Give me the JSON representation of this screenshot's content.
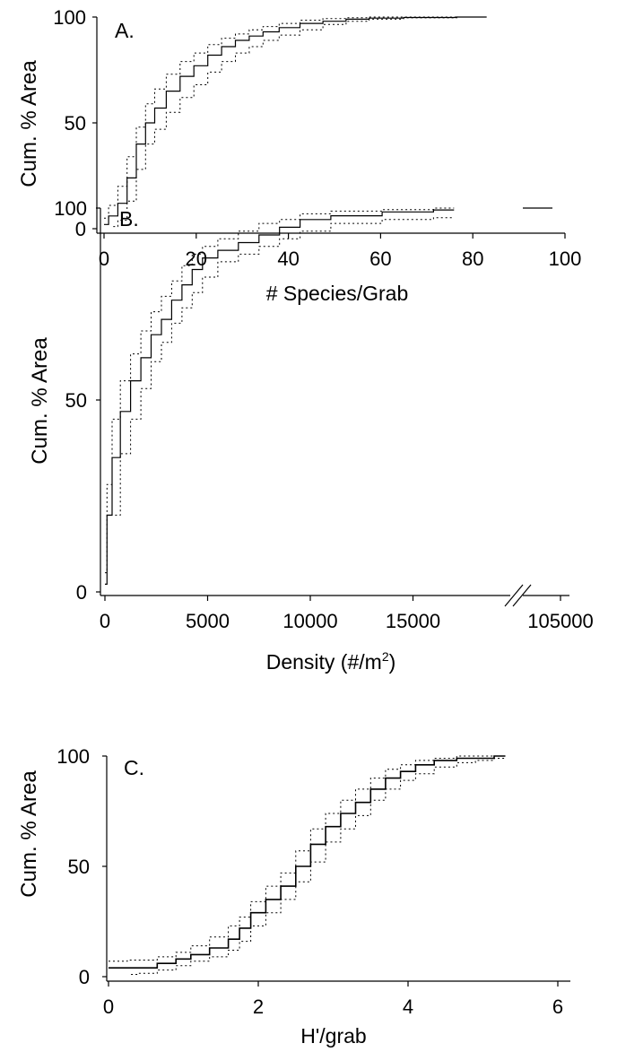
{
  "colors": {
    "line": "#000000",
    "background": "#ffffff"
  },
  "chart_data": [
    {
      "type": "line",
      "panel_label": "A.",
      "xlabel": "# Species/Grab",
      "ylabel": "Cum. % Area",
      "xlim": [
        0,
        100
      ],
      "ylim": [
        0,
        100
      ],
      "x_ticks": [
        0,
        20,
        40,
        60,
        80,
        100
      ],
      "y_ticks": [
        0,
        50,
        100
      ],
      "series": [
        {
          "style": "solid",
          "x": [
            0,
            2,
            4,
            6,
            8,
            10,
            12,
            15,
            18,
            21,
            24,
            27,
            30,
            33,
            36,
            40,
            45,
            50,
            55,
            60,
            70,
            83
          ],
          "y": [
            2,
            6,
            12,
            24,
            40,
            50,
            57,
            65,
            72,
            77,
            82,
            86,
            89,
            91,
            93,
            95,
            97,
            98,
            99,
            99.5,
            99.8,
            100
          ]
        },
        {
          "style": "dotted",
          "x": [
            0,
            2,
            4,
            6,
            8,
            10,
            12,
            15,
            18,
            21,
            24,
            27,
            30,
            33,
            36,
            40,
            45,
            50,
            55,
            60,
            70,
            83
          ],
          "y": [
            5,
            11,
            20,
            34,
            48,
            59,
            66,
            73,
            79,
            83,
            87,
            90,
            92,
            94,
            95.5,
            97,
            98.5,
            99.3,
            99.7,
            100,
            100,
            100
          ]
        },
        {
          "style": "dotted",
          "x": [
            2,
            4,
            6,
            8,
            10,
            12,
            15,
            18,
            21,
            24,
            27,
            30,
            33,
            36,
            40,
            45,
            50,
            55,
            60,
            70,
            83
          ],
          "y": [
            1,
            4,
            13,
            28,
            40,
            47,
            55,
            62,
            68,
            74,
            79,
            83,
            86,
            89,
            91.5,
            94,
            96.5,
            98,
            99,
            99.6,
            100
          ]
        }
      ]
    },
    {
      "type": "line",
      "panel_label": "B.",
      "xlabel": "Density (#/m",
      "xlabel_sup": "2",
      "xlabel_end": ")",
      "ylabel": "Cum. % Area",
      "xlim": [
        0,
        20000
      ],
      "ylim": [
        0,
        100
      ],
      "x_ticks": [
        0,
        5000,
        10000,
        15000
      ],
      "x_tick_labels": [
        "0",
        "5000",
        "10000",
        "15000"
      ],
      "break_tick_label": "105000",
      "y_ticks": [
        0,
        50,
        100
      ],
      "series": [
        {
          "style": "solid",
          "x": [
            0,
            200,
            500,
            1000,
            1500,
            2000,
            2500,
            3000,
            3500,
            4000,
            4500,
            5000,
            6000,
            7000,
            8000,
            9000,
            10000,
            12000,
            15000,
            17000
          ],
          "y": [
            2,
            20,
            35,
            47,
            55,
            61,
            67,
            71,
            76,
            80,
            84,
            87,
            89,
            91,
            93,
            95,
            97,
            98,
            99,
            99.5
          ]
        },
        {
          "style": "dotted",
          "x": [
            0,
            200,
            500,
            1000,
            1500,
            2000,
            2500,
            3000,
            3500,
            4000,
            4500,
            5000,
            6000,
            7000,
            8000,
            9000,
            10000,
            12000,
            15000,
            17000
          ],
          "y": [
            5,
            28,
            45,
            55,
            62,
            68,
            73,
            77,
            81,
            85,
            88,
            90,
            92,
            94,
            96,
            97,
            98.5,
            99.2,
            99.6,
            100
          ]
        },
        {
          "style": "dotted",
          "x": [
            500,
            1000,
            1500,
            2000,
            2500,
            3000,
            3500,
            4000,
            4500,
            5000,
            6000,
            7000,
            8000,
            9000,
            10000,
            12000,
            15000,
            17000
          ],
          "y": [
            20,
            36,
            45,
            53,
            60,
            65,
            70,
            74,
            78,
            82,
            86,
            88,
            90,
            92,
            94,
            96,
            97,
            97.5
          ]
        }
      ],
      "after_break_value": 100
    },
    {
      "type": "line",
      "panel_label": "C.",
      "xlabel": "H'/grab",
      "ylabel": "Cum. % Area",
      "xlim": [
        0,
        6
      ],
      "ylim": [
        0,
        100
      ],
      "x_ticks": [
        0,
        2,
        4,
        6
      ],
      "y_ticks": [
        0,
        50,
        100
      ],
      "series": [
        {
          "style": "solid",
          "x": [
            0,
            0.5,
            0.8,
            1.0,
            1.2,
            1.5,
            1.7,
            1.8,
            2.0,
            2.2,
            2.4,
            2.6,
            2.8,
            3.0,
            3.2,
            3.4,
            3.6,
            3.8,
            4.0,
            4.2,
            4.5,
            4.8,
            5.0,
            5.3
          ],
          "y": [
            4,
            4,
            6,
            8,
            10,
            13,
            17,
            22,
            29,
            35,
            41,
            50,
            60,
            68,
            74,
            79,
            85,
            90,
            93,
            96,
            98,
            99,
            99,
            100
          ]
        },
        {
          "style": "dotted",
          "x": [
            0,
            0.5,
            0.8,
            1.0,
            1.2,
            1.5,
            1.7,
            1.8,
            2.0,
            2.2,
            2.4,
            2.6,
            2.8,
            3.0,
            3.2,
            3.4,
            3.6,
            3.8,
            4.0,
            4.2,
            4.5,
            4.8,
            5.0,
            5.3
          ],
          "y": [
            7,
            7.5,
            9,
            11,
            14,
            18,
            23,
            27,
            34,
            41,
            47,
            57,
            67,
            74,
            80,
            85,
            90,
            94,
            96,
            98,
            99,
            100,
            100,
            100
          ]
        },
        {
          "style": "dotted",
          "x": [
            0.3,
            0.5,
            0.8,
            1.0,
            1.2,
            1.5,
            1.7,
            1.8,
            2.0,
            2.2,
            2.4,
            2.6,
            2.8,
            3.0,
            3.2,
            3.4,
            3.6,
            3.8,
            4.0,
            4.2,
            4.5,
            4.8,
            5.0,
            5.3
          ],
          "y": [
            1,
            1.5,
            3,
            5,
            7,
            9,
            12,
            16,
            23,
            29,
            35,
            43,
            52,
            61,
            67,
            73,
            80,
            85,
            89,
            92,
            95,
            97,
            98,
            99
          ]
        }
      ]
    }
  ]
}
